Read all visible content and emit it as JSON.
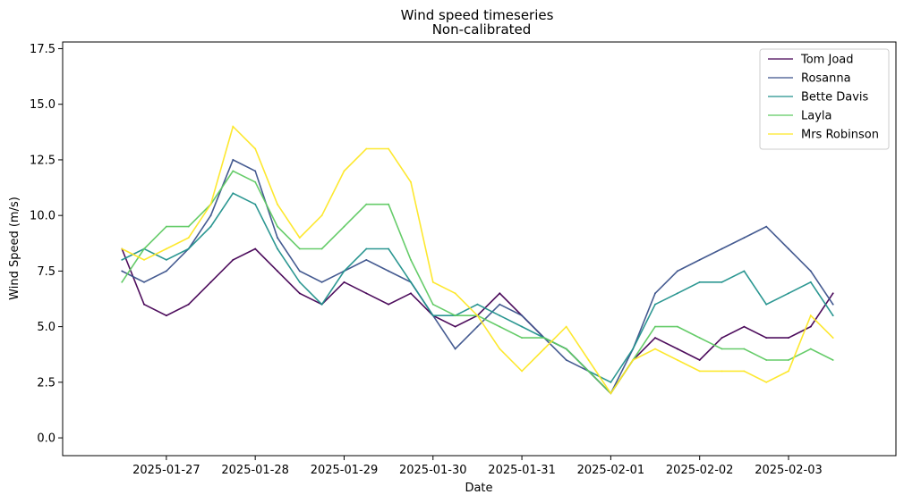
{
  "chart_data": {
    "type": "line",
    "title": "Wind speed timeseries",
    "subtitle": "Non-calibrated",
    "xlabel": "Date",
    "ylabel": "Wind Speed (m/s)",
    "xlim": [
      "2025-01-25T20:00",
      "2025-02-04T05:00"
    ],
    "ylim": [
      -0.8,
      17.8
    ],
    "x_ticks": [
      "2025-01-27",
      "2025-01-28",
      "2025-01-29",
      "2025-01-30",
      "2025-01-31",
      "2025-02-01",
      "2025-02-02",
      "2025-02-03"
    ],
    "y_ticks": [
      "0.0",
      "2.5",
      "5.0",
      "7.5",
      "10.0",
      "12.5",
      "15.0",
      "17.5"
    ],
    "grid": false,
    "legend": "top-right",
    "x": [
      "2025-01-26T12:00",
      "2025-01-26T18:00",
      "2025-01-27T00:00",
      "2025-01-27T06:00",
      "2025-01-27T12:00",
      "2025-01-27T18:00",
      "2025-01-28T00:00",
      "2025-01-28T06:00",
      "2025-01-28T12:00",
      "2025-01-28T18:00",
      "2025-01-29T00:00",
      "2025-01-29T06:00",
      "2025-01-29T12:00",
      "2025-01-29T18:00",
      "2025-01-30T00:00",
      "2025-01-30T06:00",
      "2025-01-30T12:00",
      "2025-01-30T18:00",
      "2025-01-31T00:00",
      "2025-01-31T06:00",
      "2025-01-31T12:00",
      "2025-01-31T18:00",
      "2025-02-01T00:00",
      "2025-02-01T06:00",
      "2025-02-01T12:00",
      "2025-02-01T18:00",
      "2025-02-02T00:00",
      "2025-02-02T06:00",
      "2025-02-02T12:00",
      "2025-02-02T18:00",
      "2025-02-03T00:00",
      "2025-02-03T06:00",
      "2025-02-03T12:00"
    ],
    "series": [
      {
        "name": "Tom Joad",
        "color": "#440154",
        "values": [
          8.5,
          6.0,
          5.5,
          6.0,
          7.0,
          8.0,
          8.5,
          7.5,
          6.5,
          6.0,
          7.0,
          6.5,
          6.0,
          6.5,
          5.5,
          5.0,
          5.5,
          6.5,
          5.5,
          4.5,
          4.0,
          3.0,
          2.0,
          3.5,
          4.5,
          4.0,
          3.5,
          4.5,
          5.0,
          4.5,
          4.5,
          5.0,
          6.5
        ]
      },
      {
        "name": "Rosanna",
        "color": "#3b528b",
        "values": [
          7.5,
          7.0,
          7.5,
          8.5,
          10.0,
          12.5,
          12.0,
          9.0,
          7.5,
          7.0,
          7.5,
          8.0,
          7.5,
          7.0,
          5.5,
          4.0,
          5.0,
          6.0,
          5.5,
          4.5,
          3.5,
          3.0,
          2.0,
          4.0,
          6.5,
          7.5,
          8.0,
          8.5,
          9.0,
          9.5,
          8.5,
          7.5,
          6.0
        ]
      },
      {
        "name": "Bette Davis",
        "color": "#21918c",
        "values": [
          8.0,
          8.5,
          8.0,
          8.5,
          9.5,
          11.0,
          10.5,
          8.5,
          7.0,
          6.0,
          7.5,
          8.5,
          8.5,
          7.0,
          5.5,
          5.5,
          6.0,
          5.5,
          5.0,
          4.5,
          4.0,
          3.0,
          2.5,
          4.0,
          6.0,
          6.5,
          7.0,
          7.0,
          7.5,
          6.0,
          6.5,
          7.0,
          5.5
        ]
      },
      {
        "name": "Layla",
        "color": "#5ec962",
        "values": [
          7.0,
          8.5,
          9.5,
          9.5,
          10.5,
          12.0,
          11.5,
          9.5,
          8.5,
          8.5,
          9.5,
          10.5,
          10.5,
          8.0,
          6.0,
          5.5,
          5.5,
          5.0,
          4.5,
          4.5,
          4.0,
          3.0,
          2.0,
          3.5,
          5.0,
          5.0,
          4.5,
          4.0,
          4.0,
          3.5,
          3.5,
          4.0,
          3.5
        ]
      },
      {
        "name": "Mrs Robinson",
        "color": "#fde725",
        "values": [
          8.5,
          8.0,
          8.5,
          9.0,
          10.5,
          14.0,
          13.0,
          10.5,
          9.0,
          10.0,
          12.0,
          13.0,
          13.0,
          11.5,
          7.0,
          6.5,
          5.5,
          4.0,
          3.0,
          4.0,
          5.0,
          3.5,
          2.0,
          3.5,
          4.0,
          3.5,
          3.0,
          3.0,
          3.0,
          2.5,
          3.0,
          5.5,
          4.5
        ]
      }
    ]
  }
}
